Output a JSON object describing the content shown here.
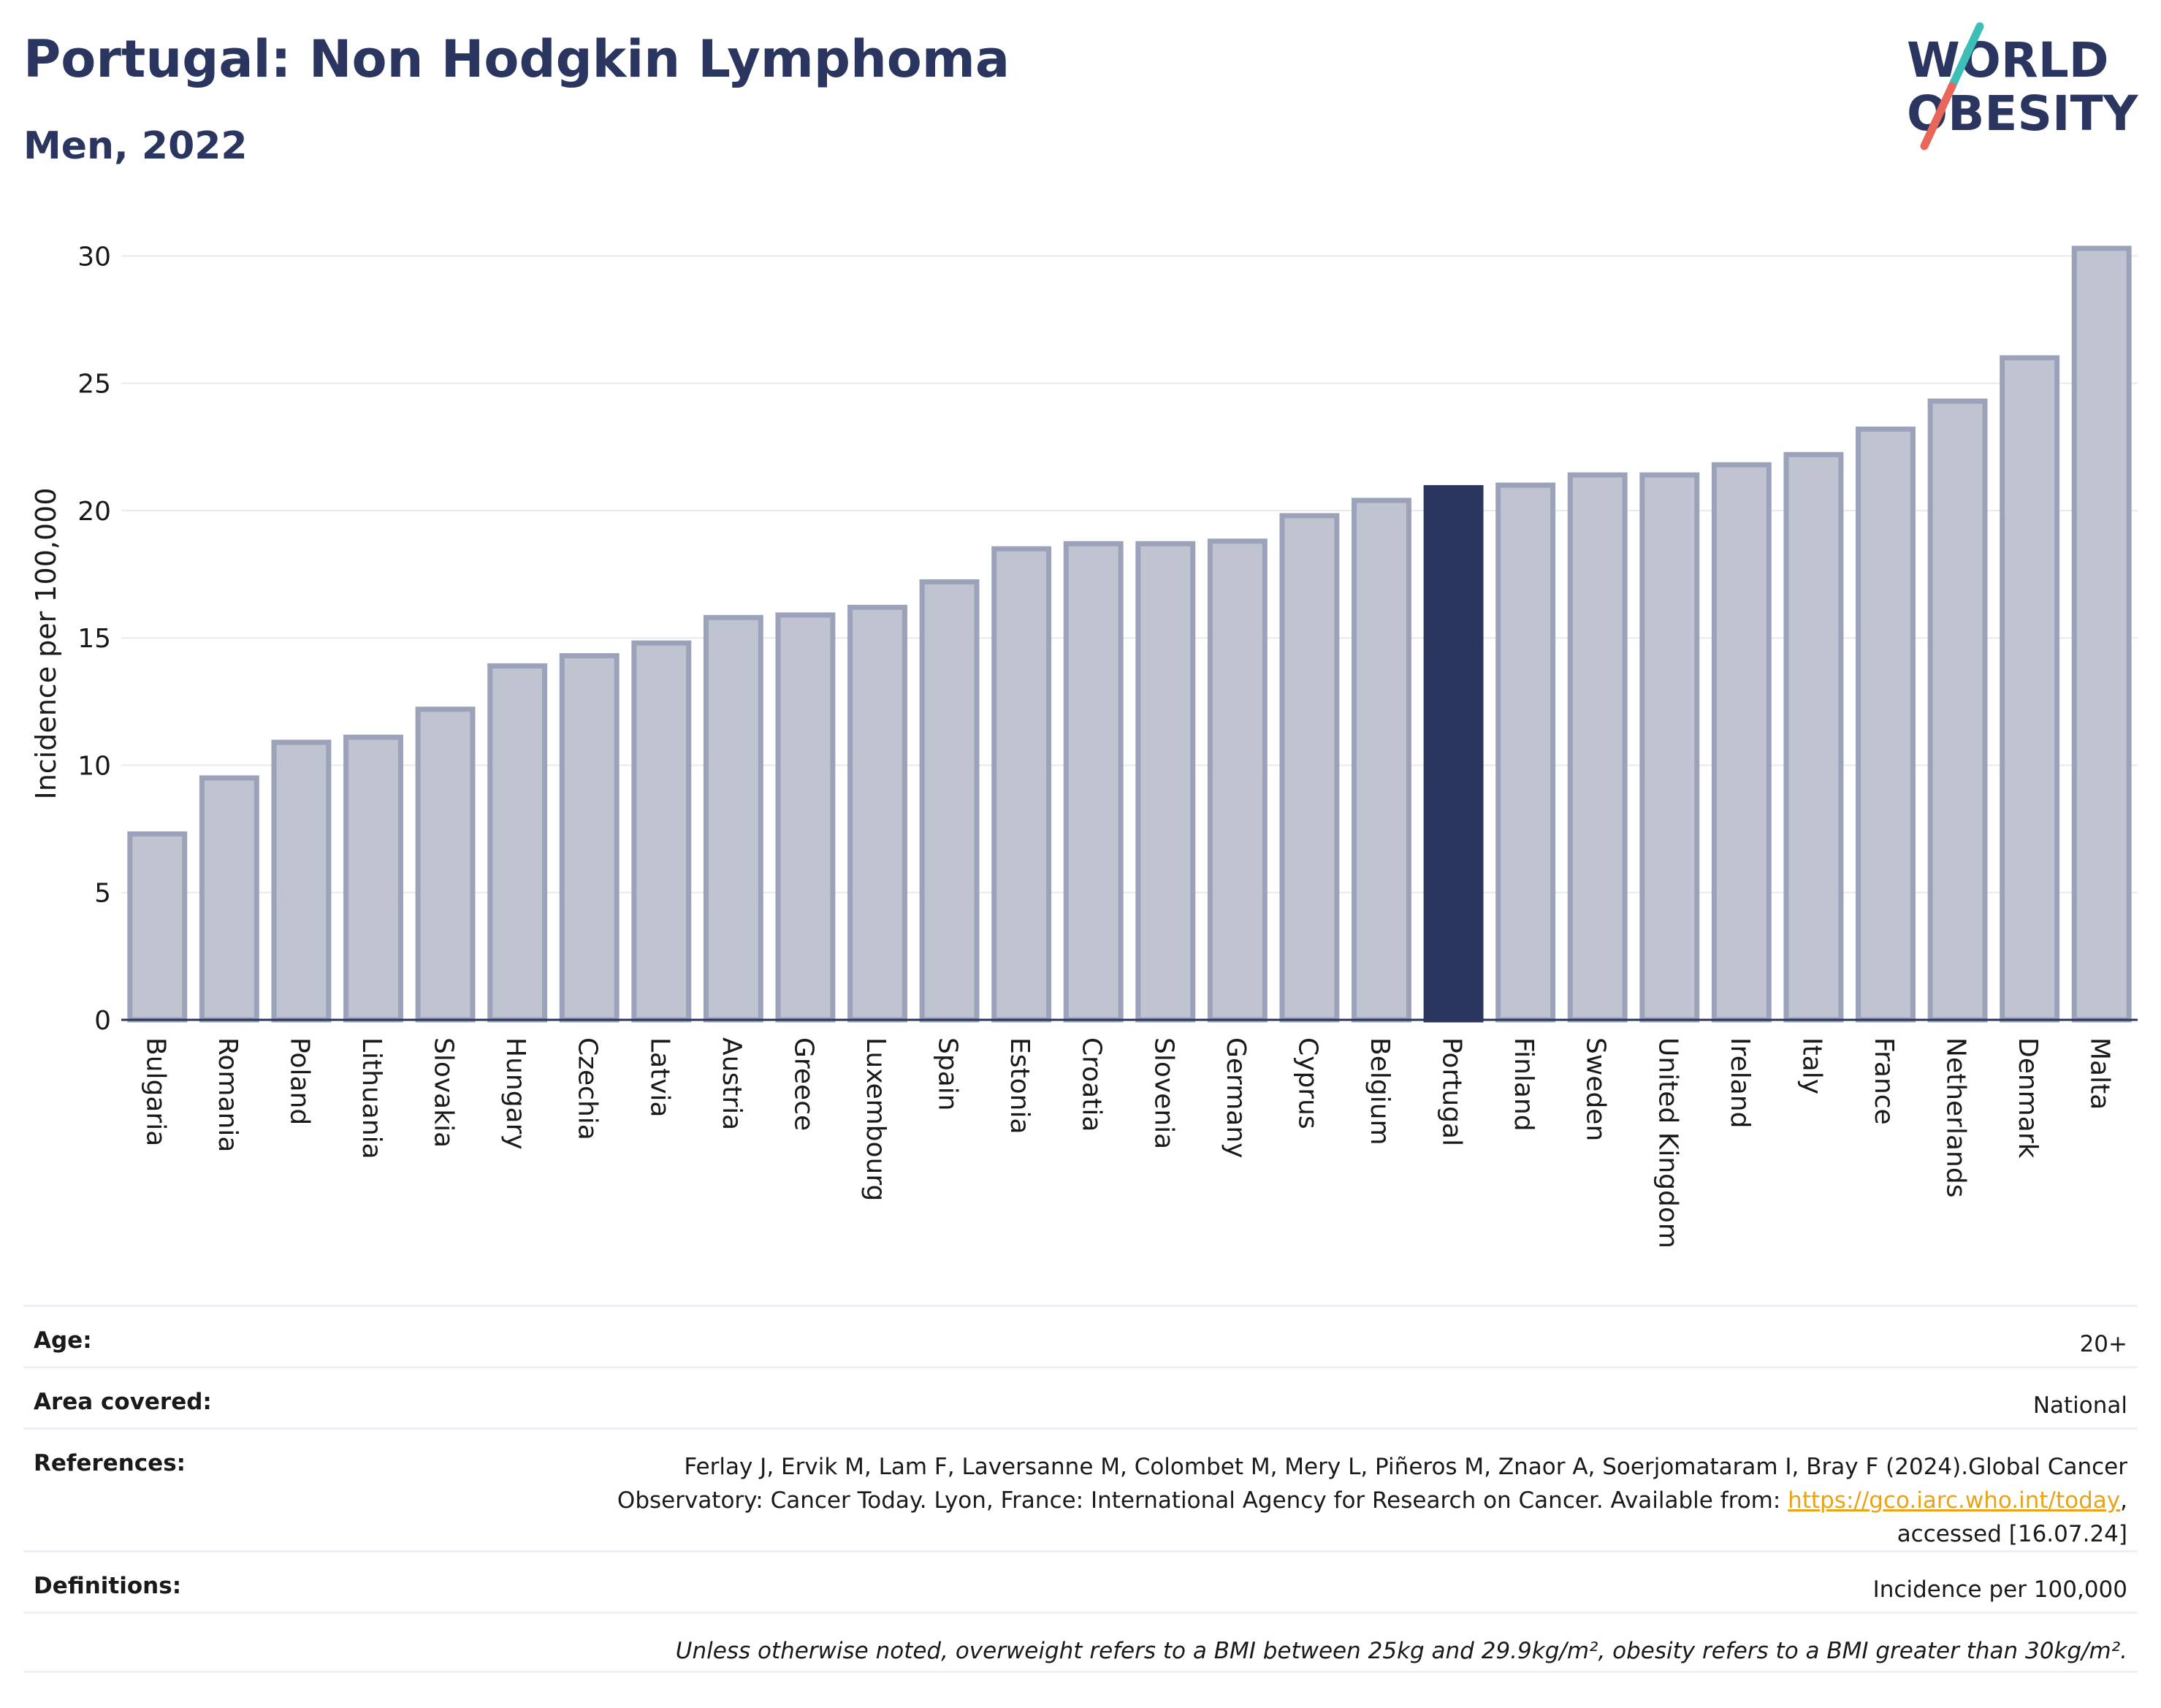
{
  "header": {
    "title": "Portugal: Non Hodgkin Lymphoma",
    "subtitle": "Men, 2022"
  },
  "logo": {
    "line1": "WORLD",
    "line2": "OBESITY",
    "accent_colors": [
      "#3dbfb8",
      "#e8675a"
    ]
  },
  "colors": {
    "highlight": "#2a3560",
    "bar": "#c0c4d0",
    "bar_border": "#9ba2b9",
    "grid": "#e8eaf0"
  },
  "chart_data": {
    "type": "bar",
    "ylabel": "Incidence per 100,000",
    "ylim": [
      0,
      30.7
    ],
    "yticks": [
      0,
      5,
      10,
      15,
      20,
      25,
      30
    ],
    "highlight": "Portugal",
    "categories": [
      "Bulgaria",
      "Romania",
      "Poland",
      "Lithuania",
      "Slovakia",
      "Hungary",
      "Czechia",
      "Latvia",
      "Austria",
      "Greece",
      "Luxembourg",
      "Spain",
      "Estonia",
      "Croatia",
      "Slovenia",
      "Germany",
      "Cyprus",
      "Belgium",
      "Portugal",
      "Finland",
      "Sweden",
      "United Kingdom",
      "Ireland",
      "Italy",
      "France",
      "Netherlands",
      "Denmark",
      "Malta"
    ],
    "values": [
      7.3,
      9.5,
      10.9,
      11.1,
      12.2,
      13.9,
      14.3,
      14.8,
      15.8,
      15.9,
      16.2,
      17.2,
      18.5,
      18.7,
      18.7,
      18.8,
      19.8,
      20.4,
      20.9,
      21.0,
      21.4,
      21.4,
      21.8,
      22.2,
      23.2,
      24.3,
      26.0,
      30.3
    ]
  },
  "meta": {
    "age": {
      "label": "Age:",
      "value": "20+"
    },
    "area": {
      "label": "Area covered:",
      "value": "National"
    },
    "references": {
      "label": "References:",
      "line1": "Ferlay J, Ervik M, Lam F, Laversanne M, Colombet M, Mery L, Piñeros M, Znaor A, Soerjomataram I, Bray F (2024).Global Cancer",
      "line2_prefix": "Observatory: Cancer Today. Lyon, France: International Agency for Research on Cancer. Available from: ",
      "link": "https://gco.iarc.who.int/today",
      "line2_suffix": ",",
      "line3": "accessed [16.07.24]"
    },
    "definitions": {
      "label": "Definitions:",
      "value": "Incidence per 100,000"
    },
    "note": "Unless otherwise noted, overweight refers to a BMI between 25kg and 29.9kg/m², obesity refers to a BMI greater than 30kg/m²."
  }
}
